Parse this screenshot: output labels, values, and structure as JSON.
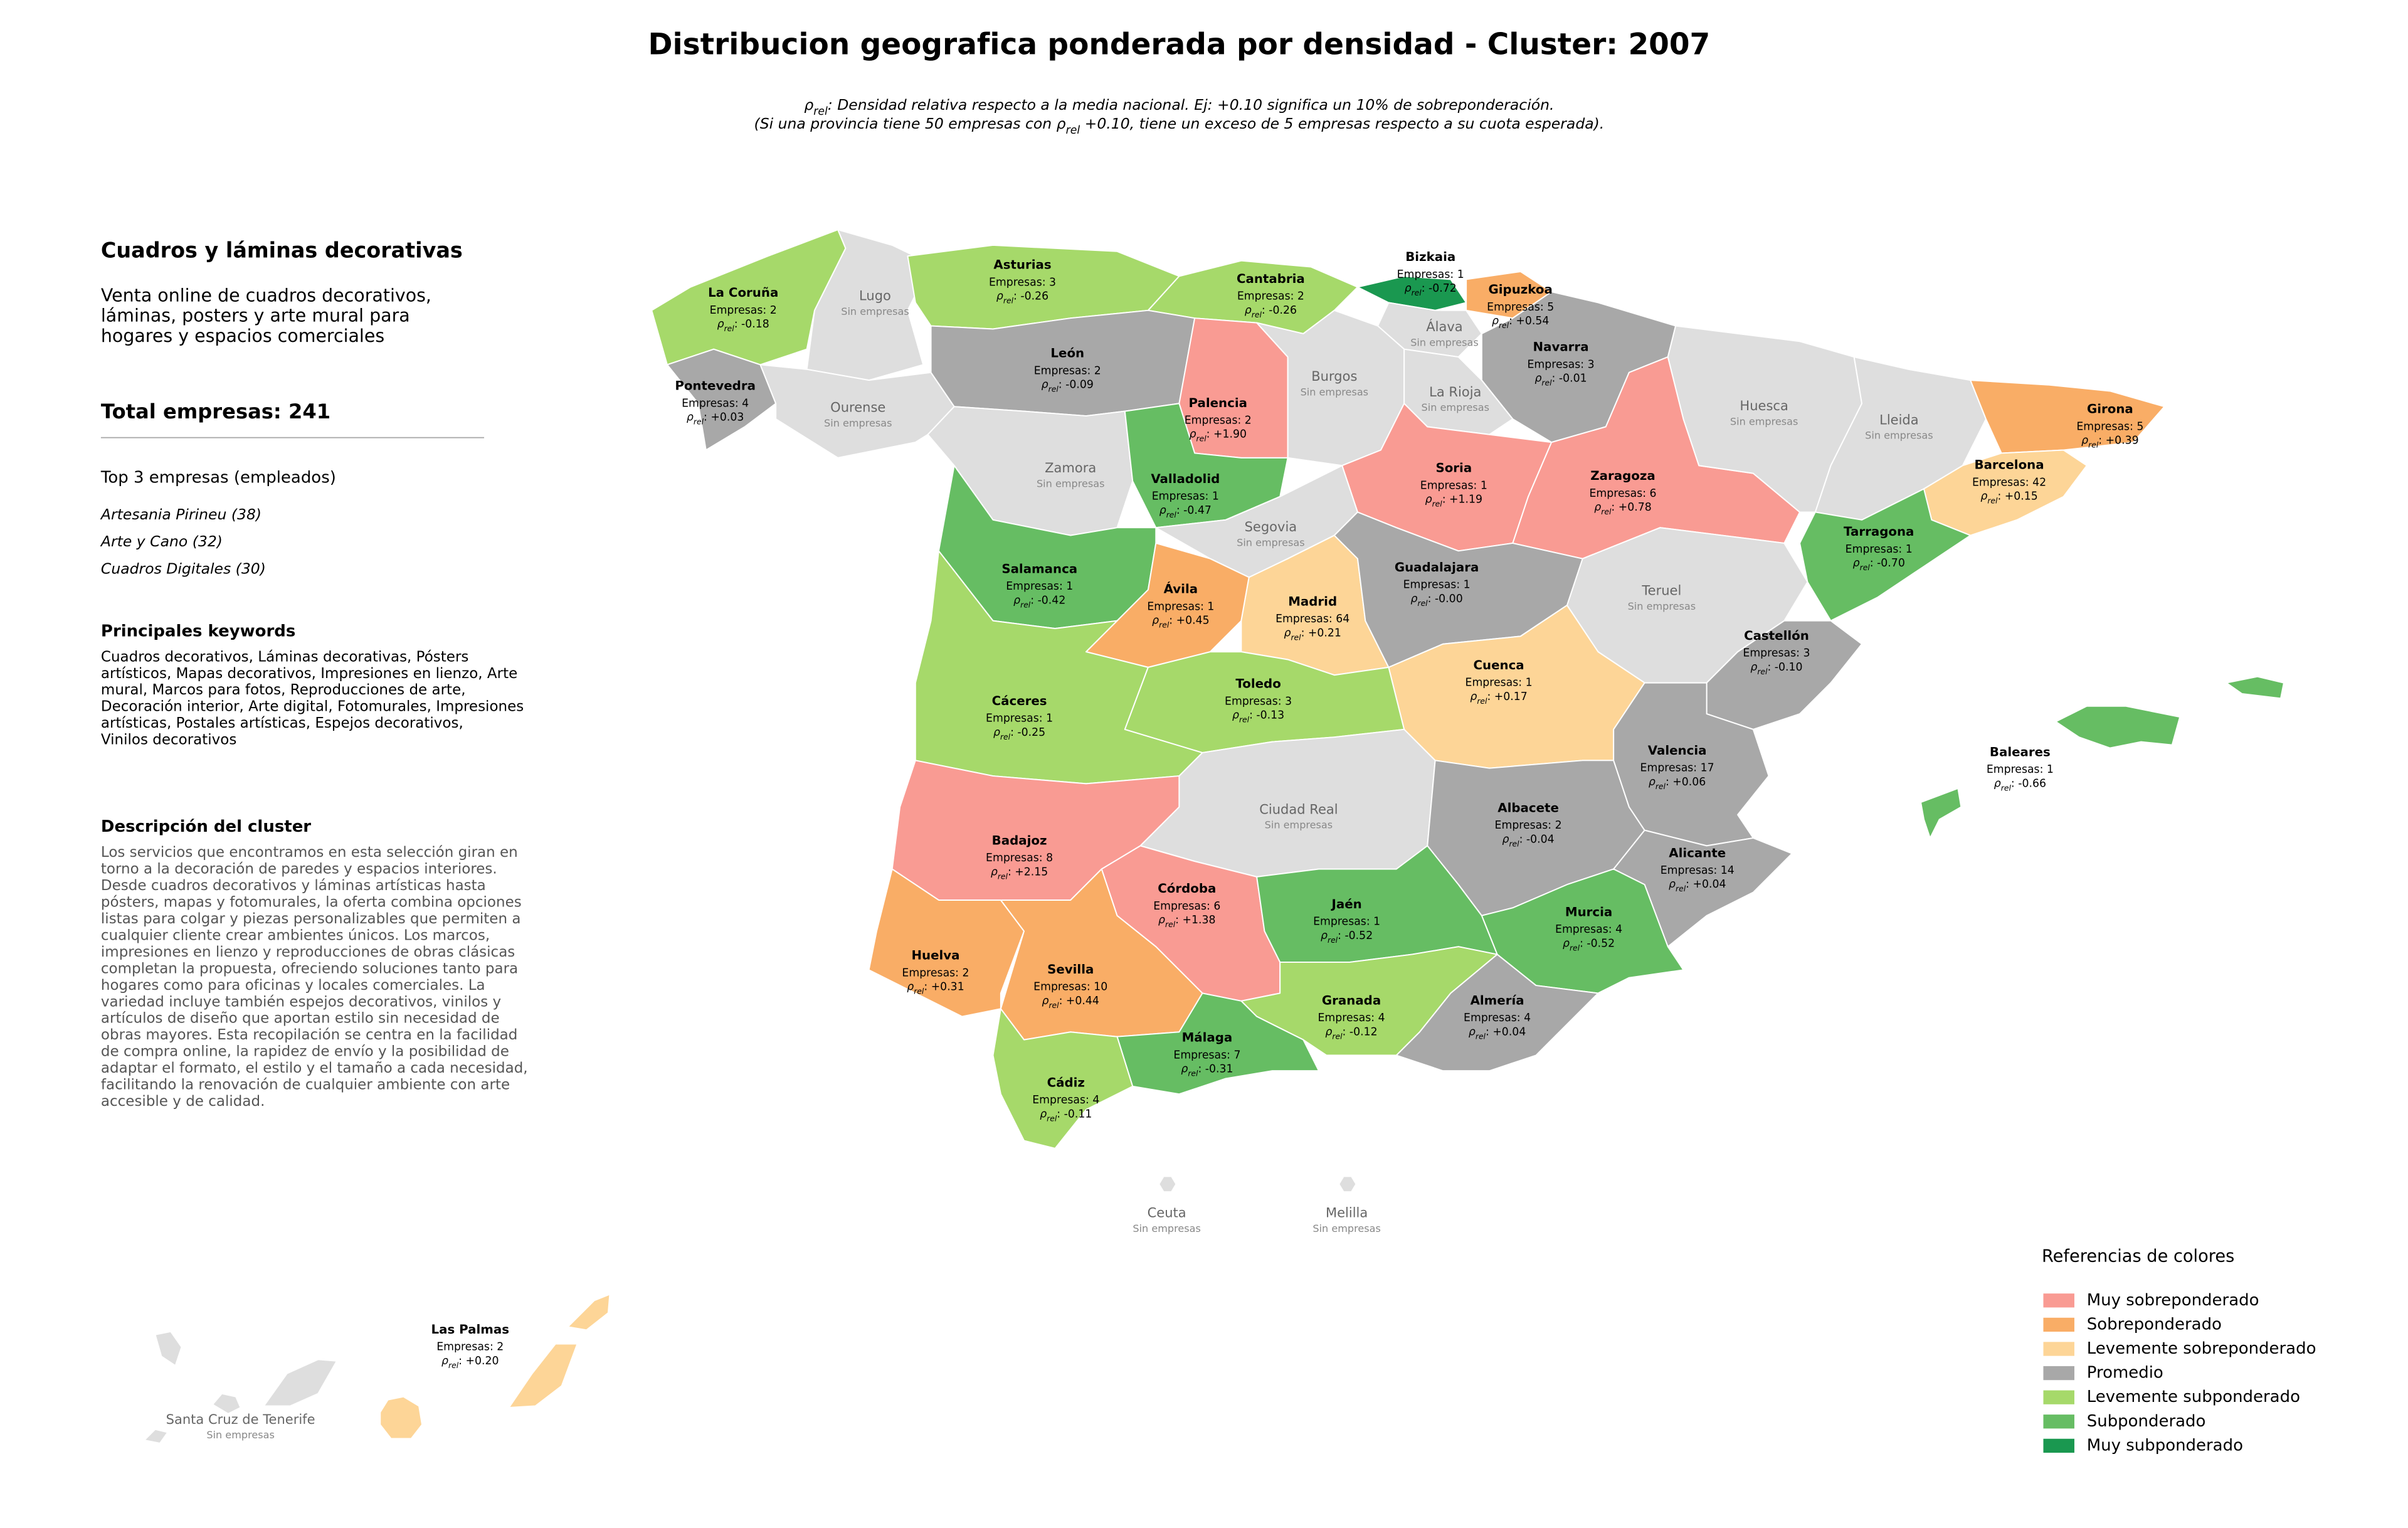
{
  "title": "Distribucion geografica ponderada por densidad - Cluster: 2007",
  "subtitle": [
    [
      {
        "t": "ρ"
      },
      {
        "t": "rel",
        "sub": true
      },
      {
        "t": ": Densidad relativa respecto a la media nacional. Ej: +0.10 significa un 10% de sobreponderación."
      }
    ],
    [
      {
        "t": "(Si una provincia tiene 50 empresas con ρ"
      },
      {
        "t": "rel",
        "sub": true
      },
      {
        "t": " +0.10, tiene un exceso de 5 empresas respecto a su cuota esperada)."
      }
    ]
  ],
  "sidebar": {
    "heading": "Cuadros y láminas decorativas",
    "summary": [
      "Venta online de cuadros decorativos,",
      "láminas, posters y arte mural para",
      "hogares y espacios comerciales"
    ],
    "total": "Total empresas: 241",
    "top_title": "Top 3 empresas (empleados)",
    "top": [
      "Artesania Pirineu (38)",
      "Arte y Cano (32)",
      "Cuadros Digitales (30)"
    ],
    "keywords_title": "Principales keywords",
    "keywords": [
      "Cuadros decorativos, Láminas decorativas, Pósters",
      "artísticos, Mapas decorativos, Impresiones en lienzo, Arte",
      "mural, Marcos para fotos, Reproducciones de arte,",
      "Decoración interior, Arte digital, Fotomurales, Impresiones",
      "artísticas, Postales artísticas, Espejos decorativos,",
      "Vinilos decorativos"
    ],
    "description_title": "Descripción del cluster",
    "description": [
      "Los servicios que encontramos en esta selección giran en",
      "torno a la decoración de paredes y espacios interiores.",
      "Desde cuadros decorativos y láminas artísticas hasta",
      "pósters, mapas y fotomurales, la oferta combina opciones",
      "listas para colgar y piezas personalizables que permiten a",
      "cualquier cliente crear ambientes únicos. Los marcos,",
      "impresiones en lienzo y reproducciones de obras clásicas",
      "completan la propuesta, ofreciendo soluciones tanto para",
      "hogares como para oficinas y locales comerciales. La",
      "variedad incluye también espejos decorativos, vinilos y",
      "artículos de diseño que aportan estilo sin necesidad de",
      "obras mayores. Esta recopilación se centra en la facilidad",
      "de compra online, la rapidez de envío y la posibilidad de",
      "adaptar el formato, el estilo y el tamaño a cada necesidad,",
      "facilitando la renovación de cualquier ambiente con arte",
      "accesible y de calidad."
    ]
  },
  "rho_label": {
    "symbol": "ρ",
    "sub": "rel",
    "sep": ": "
  },
  "map": {
    "provinces": [
      {
        "name": "La Coruña",
        "companies": "Empresas: 2",
        "rho": "-0.18",
        "color": "#a6d96a"
      },
      {
        "name": "Lugo",
        "note": "Sin empresas",
        "color": "#dedede"
      },
      {
        "name": "Pontevedra",
        "companies": "Empresas: 4",
        "rho": "+0.03",
        "color": "#a8a8a8"
      },
      {
        "name": "Ourense",
        "note": "Sin empresas",
        "color": "#dedede"
      },
      {
        "name": "Asturias",
        "companies": "Empresas: 3",
        "rho": "-0.26",
        "color": "#a6d96a"
      },
      {
        "name": "Cantabria",
        "companies": "Empresas: 2",
        "rho": "-0.26",
        "color": "#a6d96a"
      },
      {
        "name": "Bizkaia",
        "companies": "Empresas: 1",
        "rho": "-0.72",
        "color": "#1a9850"
      },
      {
        "name": "Gipuzkoa",
        "companies": "Empresas: 5",
        "rho": "+0.54",
        "color": "#f9ad66"
      },
      {
        "name": "Álava",
        "note": "Sin empresas",
        "color": "#dedede"
      },
      {
        "name": "Navarra",
        "companies": "Empresas: 3",
        "rho": "-0.01",
        "color": "#a8a8a8"
      },
      {
        "name": "León",
        "companies": "Empresas: 2",
        "rho": "-0.09",
        "color": "#a8a8a8"
      },
      {
        "name": "Palencia",
        "companies": "Empresas: 2",
        "rho": "+1.90",
        "color": "#f99b93"
      },
      {
        "name": "Burgos",
        "note": "Sin empresas",
        "color": "#dedede"
      },
      {
        "name": "La Rioja",
        "note": "Sin empresas",
        "color": "#dedede"
      },
      {
        "name": "Zamora",
        "note": "Sin empresas",
        "color": "#dedede"
      },
      {
        "name": "Valladolid",
        "companies": "Empresas: 1",
        "rho": "-0.47",
        "color": "#66bd63"
      },
      {
        "name": "Soria",
        "companies": "Empresas: 1",
        "rho": "+1.19",
        "color": "#f99b93"
      },
      {
        "name": "Zaragoza",
        "companies": "Empresas: 6",
        "rho": "+0.78",
        "color": "#f99b93"
      },
      {
        "name": "Huesca",
        "note": "Sin empresas",
        "color": "#dedede"
      },
      {
        "name": "Lleida",
        "note": "Sin empresas",
        "color": "#dedede"
      },
      {
        "name": "Girona",
        "companies": "Empresas: 5",
        "rho": "+0.39",
        "color": "#f9ad66"
      },
      {
        "name": "Barcelona",
        "companies": "Empresas: 42",
        "rho": "+0.15",
        "color": "#fdd597"
      },
      {
        "name": "Tarragona",
        "companies": "Empresas: 1",
        "rho": "-0.70",
        "color": "#66bd63"
      },
      {
        "name": "Teruel",
        "note": "Sin empresas",
        "color": "#dedede"
      },
      {
        "name": "Castellón",
        "companies": "Empresas: 3",
        "rho": "-0.10",
        "color": "#a8a8a8"
      },
      {
        "name": "Segovia",
        "note": "Sin empresas",
        "color": "#dedede"
      },
      {
        "name": "Salamanca",
        "companies": "Empresas: 1",
        "rho": "-0.42",
        "color": "#66bd63"
      },
      {
        "name": "Ávila",
        "companies": "Empresas: 1",
        "rho": "+0.45",
        "color": "#f9ad66"
      },
      {
        "name": "Madrid",
        "companies": "Empresas: 64",
        "rho": "+0.21",
        "color": "#fdd597"
      },
      {
        "name": "Guadalajara",
        "companies": "Empresas: 1",
        "rho": "-0.00",
        "color": "#a8a8a8"
      },
      {
        "name": "Cuenca",
        "companies": "Empresas: 1",
        "rho": "+0.17",
        "color": "#fdd597"
      },
      {
        "name": "Cáceres",
        "companies": "Empresas: 1",
        "rho": "-0.25",
        "color": "#a6d96a"
      },
      {
        "name": "Toledo",
        "companies": "Empresas: 3",
        "rho": "-0.13",
        "color": "#a6d96a"
      },
      {
        "name": "Badajoz",
        "companies": "Empresas: 8",
        "rho": "+2.15",
        "color": "#f99b93"
      },
      {
        "name": "Ciudad Real",
        "note": "Sin empresas",
        "color": "#dedede"
      },
      {
        "name": "Albacete",
        "companies": "Empresas: 2",
        "rho": "-0.04",
        "color": "#a8a8a8"
      },
      {
        "name": "Valencia",
        "companies": "Empresas: 17",
        "rho": "+0.06",
        "color": "#a8a8a8"
      },
      {
        "name": "Alicante",
        "companies": "Empresas: 14",
        "rho": "+0.04",
        "color": "#a8a8a8"
      },
      {
        "name": "Murcia",
        "companies": "Empresas: 4",
        "rho": "-0.52",
        "color": "#66bd63"
      },
      {
        "name": "Córdoba",
        "companies": "Empresas: 6",
        "rho": "+1.38",
        "color": "#f99b93"
      },
      {
        "name": "Jaén",
        "companies": "Empresas: 1",
        "rho": "-0.52",
        "color": "#66bd63"
      },
      {
        "name": "Huelva",
        "companies": "Empresas: 2",
        "rho": "+0.31",
        "color": "#f9ad66"
      },
      {
        "name": "Sevilla",
        "companies": "Empresas: 10",
        "rho": "+0.44",
        "color": "#f9ad66"
      },
      {
        "name": "Granada",
        "companies": "Empresas: 4",
        "rho": "-0.12",
        "color": "#a6d96a"
      },
      {
        "name": "Almería",
        "companies": "Empresas: 4",
        "rho": "+0.04",
        "color": "#a8a8a8"
      },
      {
        "name": "Málaga",
        "companies": "Empresas: 7",
        "rho": "-0.31",
        "color": "#66bd63"
      },
      {
        "name": "Cádiz",
        "companies": "Empresas: 4",
        "rho": "-0.11",
        "color": "#a6d96a"
      },
      {
        "name": "Baleares",
        "companies": "Empresas: 1",
        "rho": "-0.66",
        "color": "#66bd63"
      },
      {
        "name": "Ceuta",
        "note": "Sin empresas",
        "color": "#dedede"
      },
      {
        "name": "Melilla",
        "note": "Sin empresas",
        "color": "#dedede"
      },
      {
        "name": "Las Palmas",
        "companies": "Empresas: 2",
        "rho": "+0.20",
        "color": "#fdd597"
      },
      {
        "name": "Santa Cruz de Tenerife",
        "note": "Sin empresas",
        "color": "#dedede"
      }
    ]
  },
  "legend": {
    "title": "Referencias de colores",
    "entries": [
      {
        "name": "Muy sobreponderado",
        "color": "#f99b93"
      },
      {
        "name": "Sobreponderado",
        "color": "#f9ad66"
      },
      {
        "name": "Levemente sobreponderado",
        "color": "#fdd597"
      },
      {
        "name": "Promedio",
        "color": "#a8a8a8"
      },
      {
        "name": "Levemente subponderado",
        "color": "#a6d96a"
      },
      {
        "name": "Subponderado",
        "color": "#66bd63"
      },
      {
        "name": "Muy subponderado",
        "color": "#1a9850"
      }
    ]
  }
}
